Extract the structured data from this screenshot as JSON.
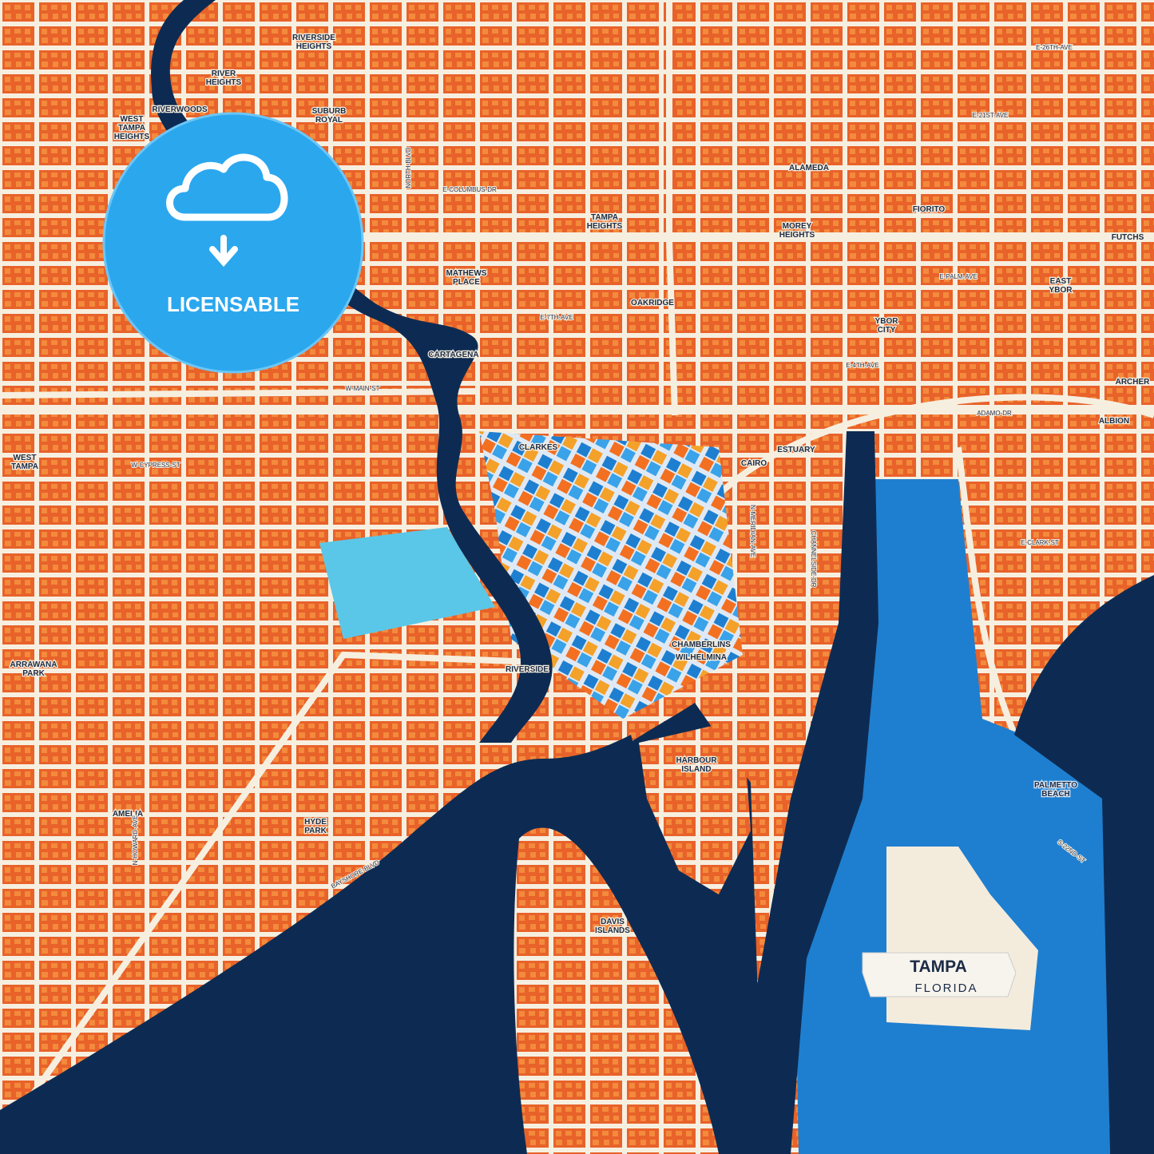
{
  "badge": {
    "label": "LICENSABLE"
  },
  "title": {
    "city": "TAMPA",
    "state": "FLORIDA"
  },
  "places": [
    [
      "RIVERSIDE",
      "HEIGHTS"
    ],
    [
      "RIVER",
      "HEIGHTS"
    ],
    [
      "RIVERWOODS"
    ],
    [
      "WEST",
      "TAMPA",
      "HEIGHTS"
    ],
    [
      "SUBURB",
      "ROYAL"
    ],
    [
      "TAMPA",
      "HEIGHTS"
    ],
    [
      "MATHEWS",
      "PLACE"
    ],
    [
      "OAKRIDGE"
    ],
    [
      "MOREY",
      "HEIGHTS"
    ],
    [
      "ALAMEDA"
    ],
    [
      "YBOR",
      "CITY"
    ],
    [
      "EAST",
      "YBOR"
    ],
    [
      "CARTAGENA"
    ],
    [
      "CLARKES"
    ],
    [
      "CAIRO"
    ],
    [
      "ESTUARY"
    ],
    [
      "ALBION"
    ],
    [
      "ARCHER"
    ],
    [
      "WEST",
      "TAMPA"
    ],
    [
      "ARRAWANA",
      "PARK"
    ],
    [
      "AMELIA"
    ],
    [
      "HYDE",
      "PARK"
    ],
    [
      "RIVERSIDE"
    ],
    [
      "CHAMBERLINS"
    ],
    [
      "WILHELMINA"
    ],
    [
      "HARBOUR",
      "ISLAND"
    ],
    [
      "DAVIS",
      "ISLANDS"
    ],
    [
      "PALMETTO",
      "BEACH"
    ],
    [
      "FIORITO"
    ],
    [
      "FUTCHS"
    ]
  ],
  "streets": [
    "W-MAIN-ST",
    "W-CYPRESS-ST",
    "E-7TH-AVE",
    "E-4TH-AVE",
    "E-PALM-AVE",
    "ADAMO-DR",
    "E-CLARK-ST",
    "BAYSHORE-BLVD",
    "CHANNELSIDE-DR",
    "N-MERIDIAN-AVE",
    "NORTH-BLVD",
    "E-21ST-AVE",
    "E-26TH-AVE",
    "E-COLUMBUS-DR",
    "S-22ND-ST",
    "N-HOWARD-AVE"
  ]
}
